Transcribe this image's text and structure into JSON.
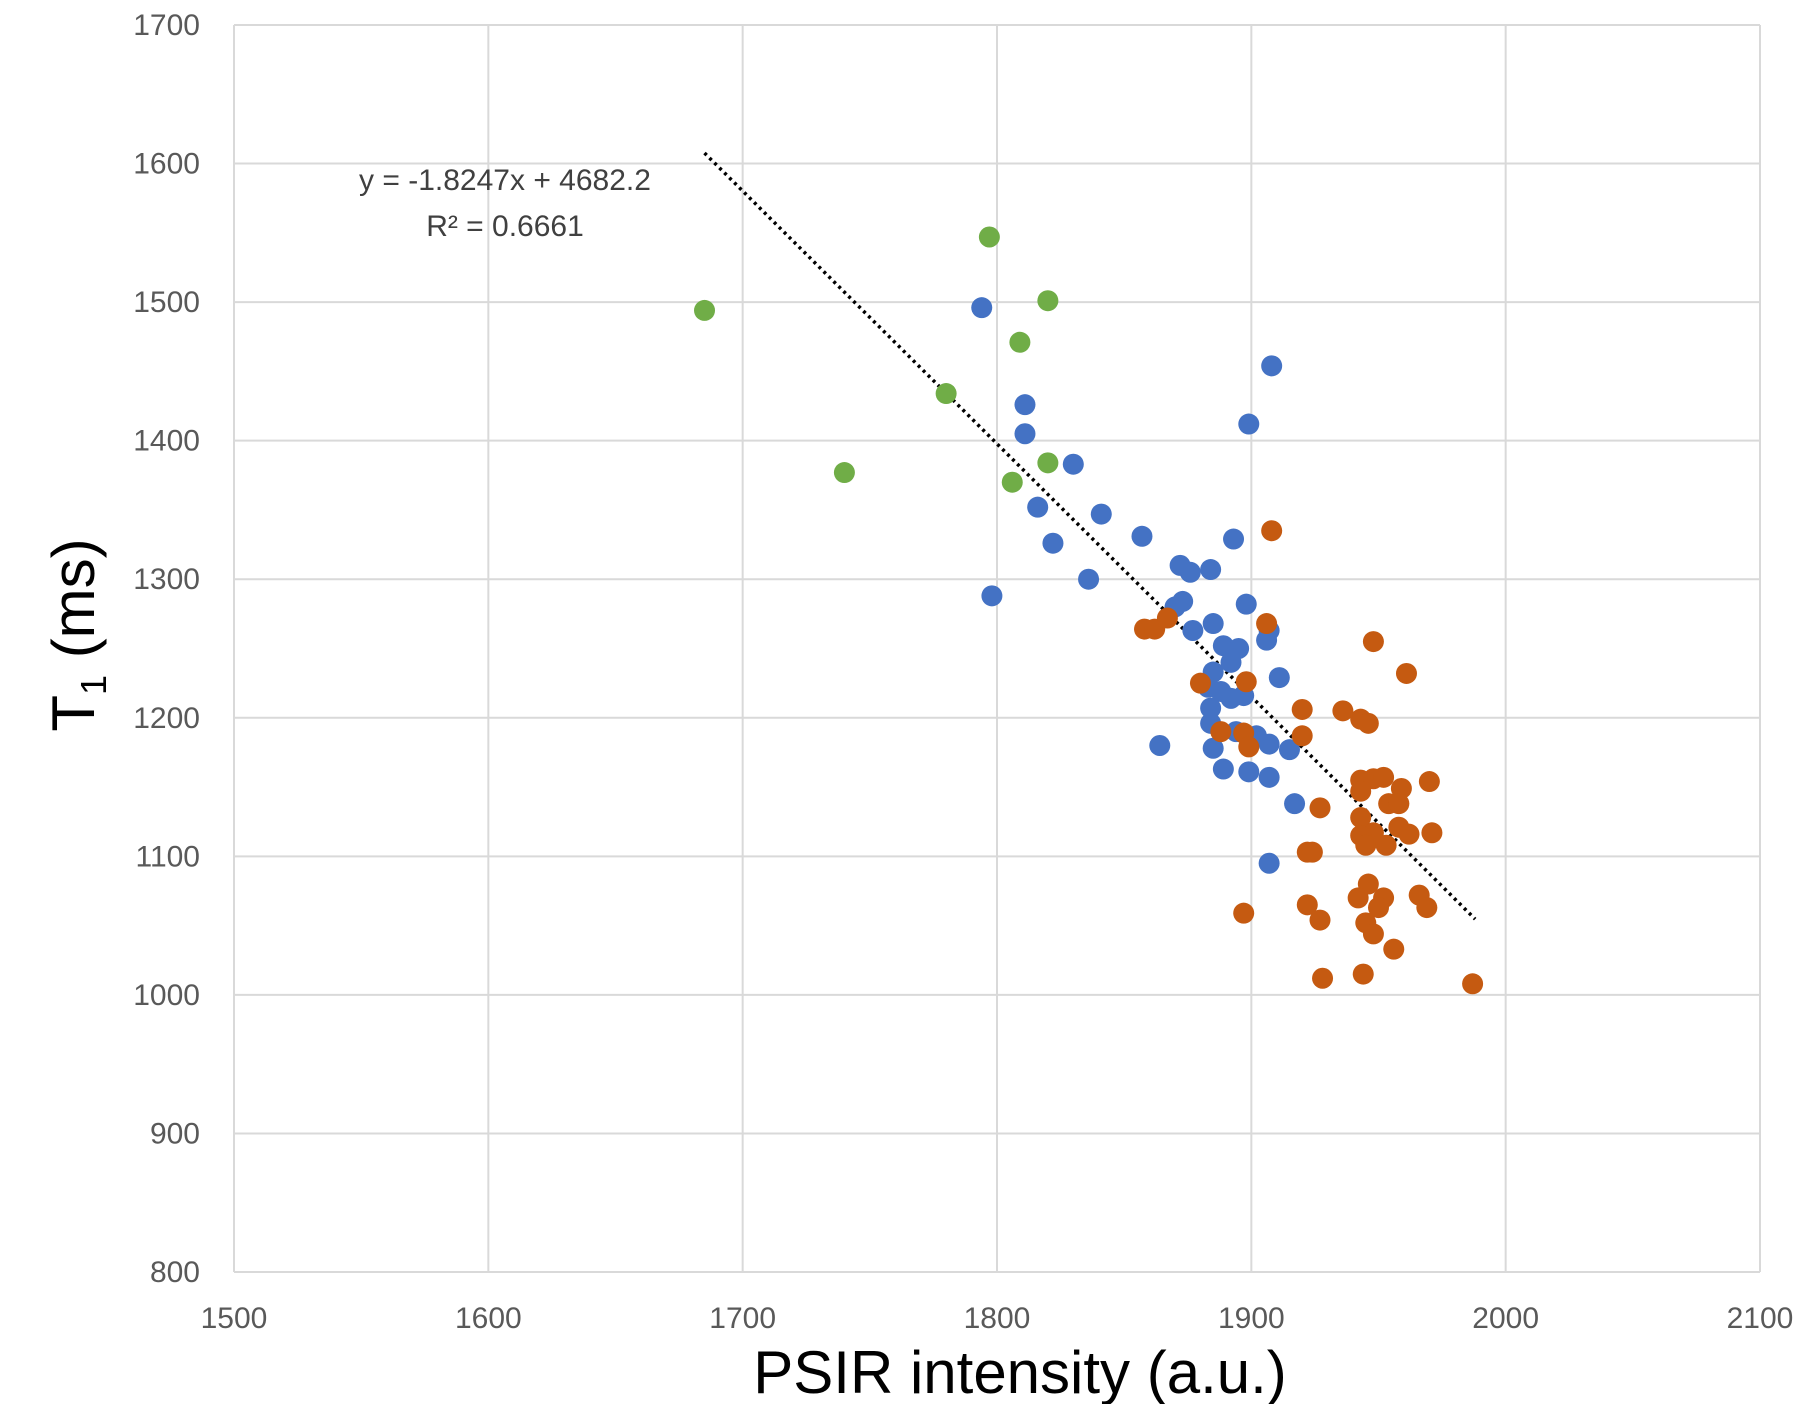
{
  "chart_data": {
    "type": "scatter",
    "title": "",
    "xlabel": "PSIR intensity (a.u.)",
    "ylabel_main": "T",
    "ylabel_sub": "1",
    "ylabel_rest": " (ms)",
    "xlim": [
      1500,
      2100
    ],
    "ylim": [
      800,
      1700
    ],
    "xticks": [
      1500,
      1600,
      1700,
      1800,
      1900,
      2000,
      2100
    ],
    "yticks": [
      800,
      900,
      1000,
      1100,
      1200,
      1300,
      1400,
      1500,
      1600,
      1700
    ],
    "grid": true,
    "legend": "none",
    "colors": {
      "green": "#70ad47",
      "blue": "#4472c4",
      "orange": "#c55a11",
      "grid": "#d9d9d9",
      "trend": "#000000"
    },
    "trendline": {
      "slope": -1.8247,
      "intercept": 4682.2,
      "x_range": [
        1685,
        1988
      ],
      "equation": "y = -1.8247x + 4682.2",
      "r2_label": "R² = 0.6661"
    },
    "series": [
      {
        "name": "green",
        "color": "#70ad47",
        "points": [
          [
            1685,
            1494
          ],
          [
            1797,
            1547
          ],
          [
            1820,
            1501
          ],
          [
            1809,
            1471
          ],
          [
            1780,
            1434
          ],
          [
            1740,
            1377
          ],
          [
            1820,
            1384
          ],
          [
            1806,
            1370
          ]
        ]
      },
      {
        "name": "blue",
        "color": "#4472c4",
        "points": [
          [
            1794,
            1496
          ],
          [
            1908,
            1454
          ],
          [
            1899,
            1412
          ],
          [
            1811,
            1426
          ],
          [
            1811,
            1405
          ],
          [
            1830,
            1383
          ],
          [
            1841,
            1347
          ],
          [
            1816,
            1352
          ],
          [
            1822,
            1326
          ],
          [
            1857,
            1331
          ],
          [
            1893,
            1329
          ],
          [
            1836,
            1300
          ],
          [
            1798,
            1288
          ],
          [
            1872,
            1310
          ],
          [
            1876,
            1305
          ],
          [
            1884,
            1307
          ],
          [
            1870,
            1280
          ],
          [
            1873,
            1284
          ],
          [
            1898,
            1282
          ],
          [
            1877,
            1263
          ],
          [
            1885,
            1268
          ],
          [
            1907,
            1263
          ],
          [
            1906,
            1256
          ],
          [
            1889,
            1252
          ],
          [
            1895,
            1250
          ],
          [
            1892,
            1240
          ],
          [
            1885,
            1233
          ],
          [
            1911,
            1229
          ],
          [
            1883,
            1222
          ],
          [
            1888,
            1219
          ],
          [
            1892,
            1214
          ],
          [
            1897,
            1216
          ],
          [
            1884,
            1207
          ],
          [
            1884,
            1196
          ],
          [
            1894,
            1190
          ],
          [
            1902,
            1187
          ],
          [
            1907,
            1181
          ],
          [
            1864,
            1180
          ],
          [
            1885,
            1178
          ],
          [
            1915,
            1177
          ],
          [
            1889,
            1163
          ],
          [
            1899,
            1161
          ],
          [
            1907,
            1157
          ],
          [
            1917,
            1138
          ],
          [
            1907,
            1095
          ]
        ]
      },
      {
        "name": "orange",
        "color": "#c55a11",
        "points": [
          [
            1908,
            1335
          ],
          [
            1858,
            1264
          ],
          [
            1862,
            1264
          ],
          [
            1867,
            1272
          ],
          [
            1906,
            1268
          ],
          [
            1948,
            1255
          ],
          [
            1961,
            1232
          ],
          [
            1880,
            1225
          ],
          [
            1898,
            1226
          ],
          [
            1920,
            1206
          ],
          [
            1936,
            1205
          ],
          [
            1943,
            1199
          ],
          [
            1946,
            1196
          ],
          [
            1888,
            1190
          ],
          [
            1897,
            1189
          ],
          [
            1899,
            1179
          ],
          [
            1920,
            1187
          ],
          [
            1943,
            1155
          ],
          [
            1948,
            1156
          ],
          [
            1952,
            1157
          ],
          [
            1943,
            1147
          ],
          [
            1959,
            1149
          ],
          [
            1970,
            1154
          ],
          [
            1927,
            1135
          ],
          [
            1954,
            1138
          ],
          [
            1958,
            1138
          ],
          [
            1943,
            1128
          ],
          [
            1958,
            1121
          ],
          [
            1948,
            1117
          ],
          [
            1943,
            1115
          ],
          [
            1962,
            1116
          ],
          [
            1971,
            1117
          ],
          [
            1945,
            1108
          ],
          [
            1953,
            1108
          ],
          [
            1922,
            1103
          ],
          [
            1924,
            1103
          ],
          [
            1946,
            1080
          ],
          [
            1942,
            1070
          ],
          [
            1952,
            1070
          ],
          [
            1966,
            1072
          ],
          [
            1950,
            1063
          ],
          [
            1969,
            1063
          ],
          [
            1922,
            1065
          ],
          [
            1897,
            1059
          ],
          [
            1927,
            1054
          ],
          [
            1945,
            1052
          ],
          [
            1948,
            1044
          ],
          [
            1956,
            1033
          ],
          [
            1928,
            1012
          ],
          [
            1944,
            1015
          ],
          [
            1987,
            1008
          ]
        ]
      }
    ]
  }
}
